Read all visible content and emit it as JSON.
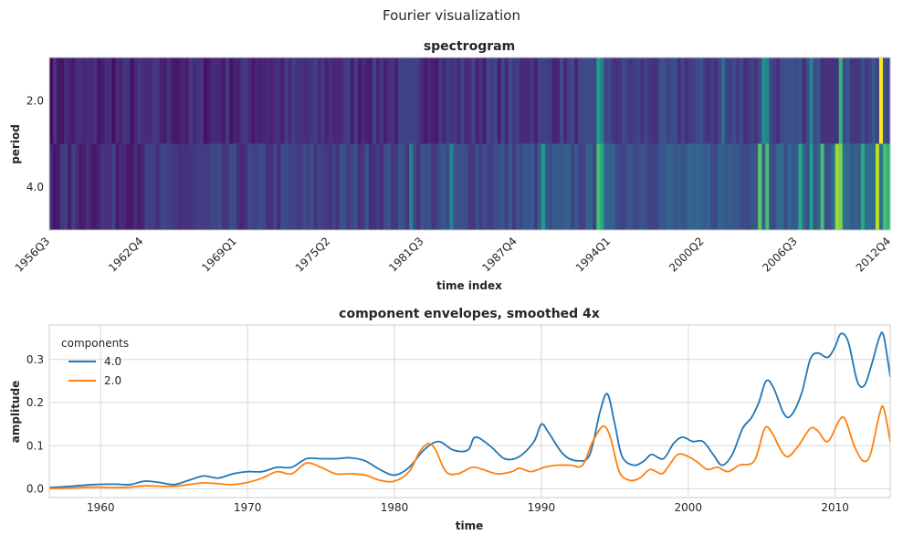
{
  "figure_title": "Fourier visualization",
  "chart_data": [
    {
      "type": "heatmap",
      "title": "spectrogram",
      "xlabel": "time index",
      "ylabel": "period",
      "rows": [
        "2.0",
        "4.0"
      ],
      "x_tick_labels": [
        "1956Q3",
        "1962Q4",
        "1969Q1",
        "1975Q2",
        "1981Q3",
        "1987Q4",
        "1994Q1",
        "2000Q2",
        "2006Q3",
        "2012Q4"
      ],
      "time_range": [
        "1956Q3",
        "2013Q3"
      ],
      "colormap": "viridis",
      "value_range": [
        0,
        1
      ],
      "grid": false,
      "highlights_period_2": [
        {
          "quarter": "1993Q4",
          "level": 0.55
        },
        {
          "quarter": "1994Q1",
          "level": 0.45
        },
        {
          "quarter": "2002Q2",
          "level": 0.35
        },
        {
          "quarter": "2005Q1",
          "level": 0.5
        },
        {
          "quarter": "2005Q2",
          "level": 0.45
        },
        {
          "quarter": "2008Q2",
          "level": 0.45
        },
        {
          "quarter": "2010Q2",
          "level": 0.65
        },
        {
          "quarter": "2013Q1",
          "level": 1.0
        }
      ],
      "highlights_period_4": [
        {
          "quarter": "1981Q1",
          "level": 0.45
        },
        {
          "quarter": "1983Q4",
          "level": 0.45
        },
        {
          "quarter": "1990Q1",
          "level": 0.55
        },
        {
          "quarter": "1993Q4",
          "level": 0.7
        },
        {
          "quarter": "1994Q1",
          "level": 0.6
        },
        {
          "quarter": "2004Q4",
          "level": 0.75
        },
        {
          "quarter": "2005Q2",
          "level": 0.7
        },
        {
          "quarter": "2007Q3",
          "level": 0.6
        },
        {
          "quarter": "2008Q2",
          "level": 0.55
        },
        {
          "quarter": "2009Q1",
          "level": 0.7
        },
        {
          "quarter": "2010Q1",
          "level": 0.85
        },
        {
          "quarter": "2010Q2",
          "level": 0.8
        },
        {
          "quarter": "2011Q4",
          "level": 0.6
        },
        {
          "quarter": "2012Q4",
          "level": 0.9
        },
        {
          "quarter": "2013Q2",
          "level": 0.7
        },
        {
          "quarter": "2013Q3",
          "level": 0.65
        }
      ]
    },
    {
      "type": "line",
      "title": "component envelopes, smoothed 4x",
      "xlabel": "time",
      "ylabel": "amplitude",
      "xlim": [
        1956.5,
        2013.75
      ],
      "ylim": [
        -0.02,
        0.38
      ],
      "x_ticks": [
        1960,
        1970,
        1980,
        1990,
        2000,
        2010
      ],
      "y_ticks": [
        0.0,
        0.1,
        0.2,
        0.3
      ],
      "grid": true,
      "legend": {
        "title": "components",
        "placement": "top-left"
      },
      "series": [
        {
          "name": "4.0",
          "color": "#1f77b4",
          "points": [
            [
              1956.5,
              0.003
            ],
            [
              1958,
              0.006
            ],
            [
              1959.5,
              0.01
            ],
            [
              1961,
              0.011
            ],
            [
              1962,
              0.01
            ],
            [
              1963,
              0.018
            ],
            [
              1964,
              0.015
            ],
            [
              1965,
              0.01
            ],
            [
              1966,
              0.02
            ],
            [
              1967,
              0.03
            ],
            [
              1968,
              0.025
            ],
            [
              1969,
              0.035
            ],
            [
              1970,
              0.04
            ],
            [
              1971,
              0.04
            ],
            [
              1972,
              0.05
            ],
            [
              1973,
              0.05
            ],
            [
              1974,
              0.07
            ],
            [
              1975,
              0.07
            ],
            [
              1976,
              0.07
            ],
            [
              1977,
              0.072
            ],
            [
              1978,
              0.065
            ],
            [
              1979,
              0.045
            ],
            [
              1980,
              0.032
            ],
            [
              1981,
              0.05
            ],
            [
              1982,
              0.09
            ],
            [
              1983,
              0.11
            ],
            [
              1984,
              0.09
            ],
            [
              1985,
              0.09
            ],
            [
              1985.5,
              0.12
            ],
            [
              1986.5,
              0.1
            ],
            [
              1987.5,
              0.07
            ],
            [
              1988.5,
              0.075
            ],
            [
              1989.5,
              0.11
            ],
            [
              1990,
              0.15
            ],
            [
              1990.5,
              0.13
            ],
            [
              1991.5,
              0.08
            ],
            [
              1992.5,
              0.065
            ],
            [
              1993.3,
              0.08
            ],
            [
              1994,
              0.18
            ],
            [
              1994.5,
              0.22
            ],
            [
              1995,
              0.15
            ],
            [
              1995.5,
              0.075
            ],
            [
              1996.3,
              0.055
            ],
            [
              1997,
              0.065
            ],
            [
              1997.5,
              0.08
            ],
            [
              1998.3,
              0.07
            ],
            [
              1999,
              0.105
            ],
            [
              1999.6,
              0.12
            ],
            [
              2000.3,
              0.11
            ],
            [
              2001,
              0.11
            ],
            [
              2001.7,
              0.08
            ],
            [
              2002.3,
              0.055
            ],
            [
              2003,
              0.08
            ],
            [
              2003.7,
              0.14
            ],
            [
              2004.3,
              0.165
            ],
            [
              2004.8,
              0.2
            ],
            [
              2005.3,
              0.25
            ],
            [
              2005.8,
              0.235
            ],
            [
              2006.5,
              0.175
            ],
            [
              2007,
              0.17
            ],
            [
              2007.7,
              0.22
            ],
            [
              2008.3,
              0.3
            ],
            [
              2008.8,
              0.315
            ],
            [
              2009.5,
              0.305
            ],
            [
              2010,
              0.33
            ],
            [
              2010.4,
              0.36
            ],
            [
              2010.9,
              0.34
            ],
            [
              2011.5,
              0.25
            ],
            [
              2012,
              0.24
            ],
            [
              2012.5,
              0.29
            ],
            [
              2013,
              0.35
            ],
            [
              2013.3,
              0.355
            ],
            [
              2013.75,
              0.26
            ]
          ]
        },
        {
          "name": "2.0",
          "color": "#ff7f0e",
          "points": [
            [
              1956.5,
              0.001
            ],
            [
              1958,
              0.002
            ],
            [
              1959.5,
              0.004
            ],
            [
              1961,
              0.003
            ],
            [
              1962,
              0.004
            ],
            [
              1963,
              0.007
            ],
            [
              1964,
              0.006
            ],
            [
              1965,
              0.006
            ],
            [
              1966,
              0.01
            ],
            [
              1967,
              0.014
            ],
            [
              1968,
              0.012
            ],
            [
              1969,
              0.01
            ],
            [
              1970,
              0.015
            ],
            [
              1971,
              0.025
            ],
            [
              1972,
              0.04
            ],
            [
              1973,
              0.035
            ],
            [
              1974,
              0.06
            ],
            [
              1975,
              0.05
            ],
            [
              1976,
              0.035
            ],
            [
              1977,
              0.035
            ],
            [
              1978,
              0.032
            ],
            [
              1979,
              0.02
            ],
            [
              1980,
              0.018
            ],
            [
              1981,
              0.04
            ],
            [
              1981.7,
              0.085
            ],
            [
              1982.3,
              0.105
            ],
            [
              1982.8,
              0.09
            ],
            [
              1983.5,
              0.04
            ],
            [
              1984.3,
              0.035
            ],
            [
              1985.3,
              0.05
            ],
            [
              1986,
              0.045
            ],
            [
              1987,
              0.035
            ],
            [
              1988,
              0.04
            ],
            [
              1988.5,
              0.048
            ],
            [
              1989.3,
              0.04
            ],
            [
              1990.2,
              0.05
            ],
            [
              1991,
              0.055
            ],
            [
              1992,
              0.055
            ],
            [
              1992.8,
              0.055
            ],
            [
              1993.5,
              0.11
            ],
            [
              1994.2,
              0.145
            ],
            [
              1994.7,
              0.12
            ],
            [
              1995.3,
              0.04
            ],
            [
              1996,
              0.02
            ],
            [
              1996.7,
              0.025
            ],
            [
              1997.4,
              0.045
            ],
            [
              1998.2,
              0.035
            ],
            [
              1998.7,
              0.055
            ],
            [
              1999.3,
              0.08
            ],
            [
              2000,
              0.075
            ],
            [
              2000.7,
              0.06
            ],
            [
              2001.3,
              0.045
            ],
            [
              2002,
              0.05
            ],
            [
              2002.7,
              0.04
            ],
            [
              2003.5,
              0.055
            ],
            [
              2004.5,
              0.065
            ],
            [
              2005.2,
              0.14
            ],
            [
              2005.7,
              0.13
            ],
            [
              2006.3,
              0.09
            ],
            [
              2006.8,
              0.075
            ],
            [
              2007.5,
              0.1
            ],
            [
              2008.3,
              0.14
            ],
            [
              2008.8,
              0.135
            ],
            [
              2009.5,
              0.11
            ],
            [
              2010.3,
              0.16
            ],
            [
              2010.7,
              0.16
            ],
            [
              2011.3,
              0.1
            ],
            [
              2011.9,
              0.065
            ],
            [
              2012.4,
              0.08
            ],
            [
              2013,
              0.17
            ],
            [
              2013.3,
              0.188
            ],
            [
              2013.75,
              0.11
            ]
          ]
        }
      ]
    }
  ]
}
